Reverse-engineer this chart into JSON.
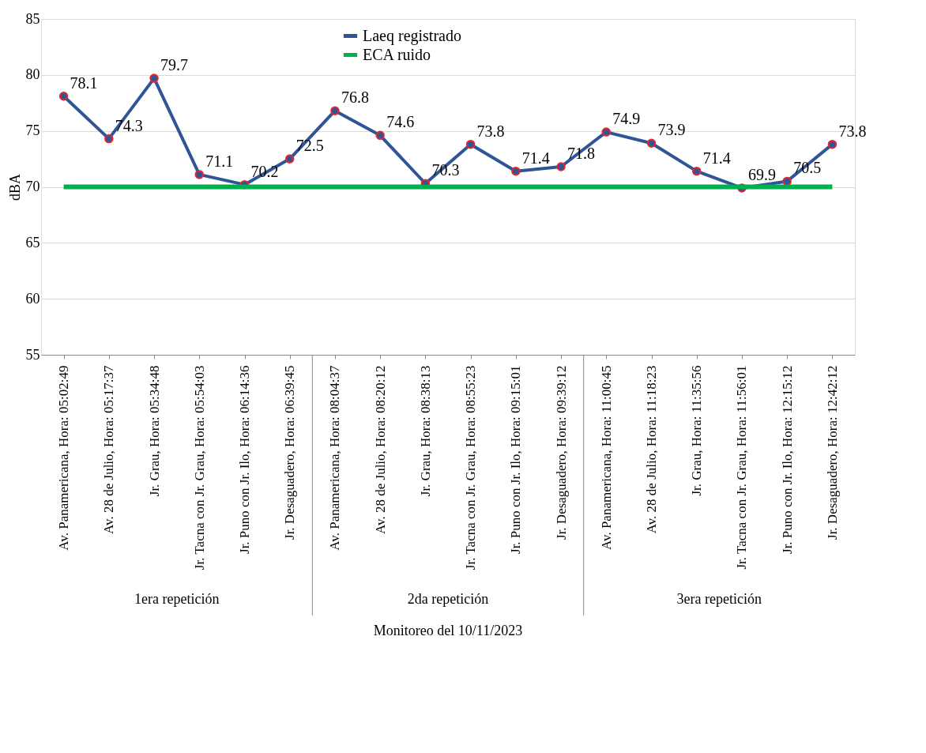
{
  "chart_data": {
    "type": "line",
    "ylabel": "dBA",
    "xlabel": "Monitoreo del 10/11/2023",
    "categories": [
      "Av. Panamericana, Hora: 05:02:49",
      "Av. 28 de Julio, Hora: 05:17:37",
      "Jr. Grau, Hora: 05:34:48",
      "Jr. Tacna con Jr. Grau, Hora: 05:54:03",
      "Jr. Puno con Jr. Ilo, Hora: 06:14:36",
      "Jr. Desaguadero, Hora: 06:39:45",
      "Av. Panamericana, Hora: 08:04:37",
      "Av. 28 de Julio, Hora: 08:20:12",
      "Jr. Grau, Hora: 08:38:13",
      "Jr. Tacna con Jr. Grau, Hora: 08:55:23",
      "Jr. Puno con Jr. Ilo, Hora: 09:15:01",
      "Jr. Desaguadero, Hora: 09:39:12",
      "Av. Panamericana, Hora: 11:00:45",
      "Av. 28 de Julio, Hora: 11:18:23",
      "Jr. Grau, Hora: 11:35:56",
      "Jr. Tacna con Jr. Grau, Hora: 11:56:01",
      "Jr. Puno con Jr. Ilo, Hora: 12:15:12",
      "Jr. Desaguadero, Hora: 12:42:12"
    ],
    "series": [
      {
        "name": "Laeq registrado",
        "color": "#2f5597",
        "marker": "circle",
        "values": [
          78.1,
          74.3,
          79.7,
          71.1,
          70.2,
          72.5,
          76.8,
          74.6,
          70.3,
          73.8,
          71.4,
          71.8,
          74.9,
          73.9,
          71.4,
          69.9,
          70.5,
          73.8
        ],
        "value_labels": [
          "78.1",
          "74.3",
          "79.7",
          "71.1",
          "70.2",
          "72.5",
          "76.8",
          "74.6",
          "70.3",
          "73.8",
          "71.4",
          "71.8",
          "74.9",
          "73.9",
          "71.4",
          "69.9",
          "70.5",
          "73.8"
        ]
      },
      {
        "name": "ECA ruido",
        "color": "#00b050",
        "values": [
          70,
          70,
          70,
          70,
          70,
          70,
          70,
          70,
          70,
          70,
          70,
          70,
          70,
          70,
          70,
          70,
          70,
          70
        ]
      }
    ],
    "annotations": [
      "1era repetición",
      "2da repetición",
      "3era repetición"
    ],
    "ylim": [
      55,
      85
    ],
    "yticks": [
      55,
      60,
      65,
      70,
      75,
      80,
      85
    ],
    "grid": "y",
    "legend": "top"
  }
}
